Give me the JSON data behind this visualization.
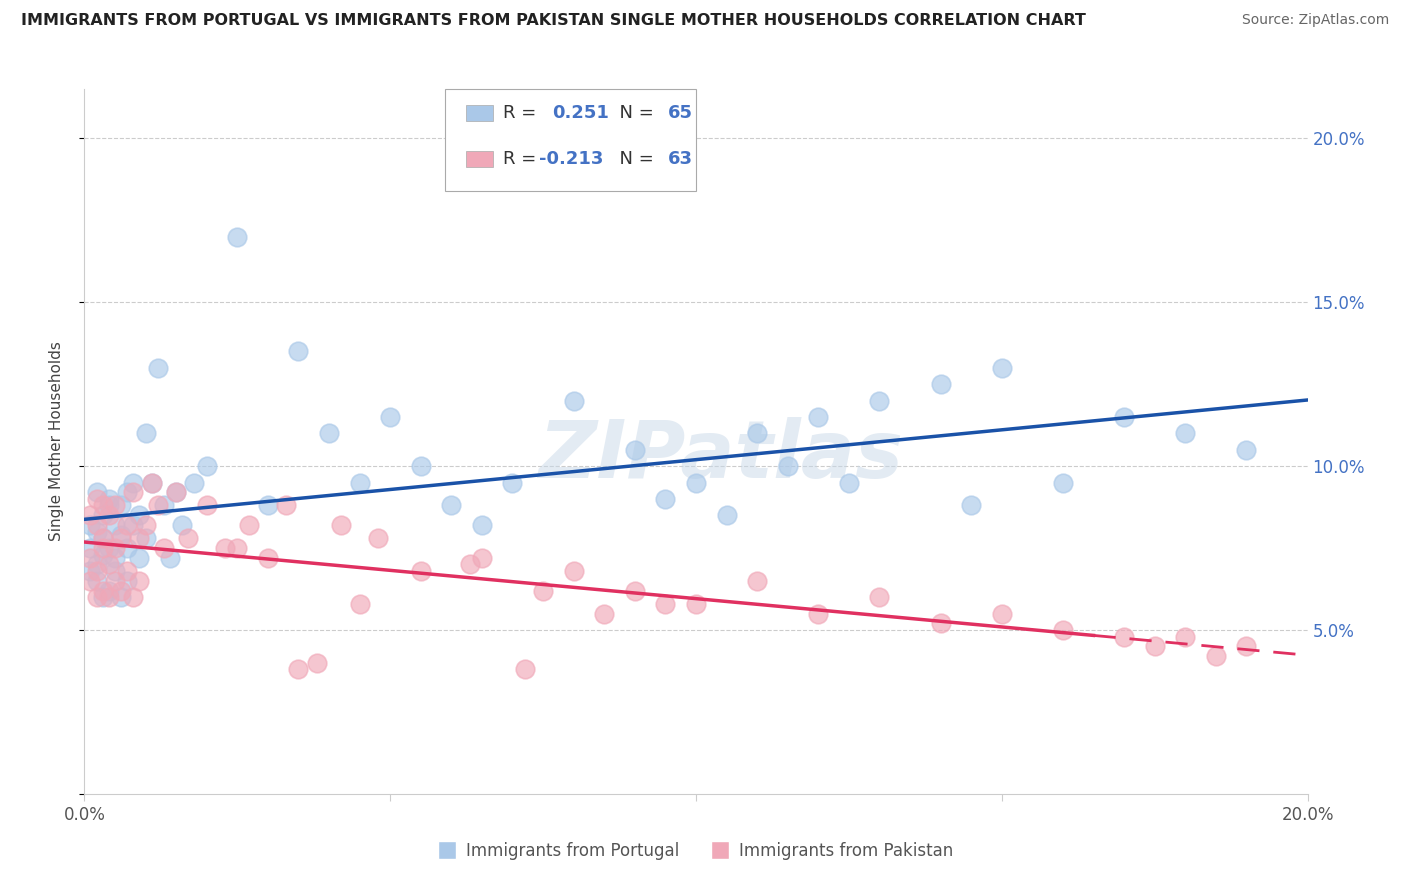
{
  "title": "IMMIGRANTS FROM PORTUGAL VS IMMIGRANTS FROM PAKISTAN SINGLE MOTHER HOUSEHOLDS CORRELATION CHART",
  "source": "Source: ZipAtlas.com",
  "ylabel": "Single Mother Households",
  "color_portugal": "#aac8e8",
  "color_pakistan": "#f0a8b8",
  "color_portugal_line": "#1a52a8",
  "color_pakistan_line": "#e03060",
  "r_portugal": "0.251",
  "n_portugal": "65",
  "r_pakistan": "-0.213",
  "n_pakistan": "63",
  "watermark": "ZIPatlas",
  "xlim": [
    0.0,
    0.2
  ],
  "ylim": [
    0.0,
    0.215
  ],
  "portugal_x": [
    0.001,
    0.001,
    0.001,
    0.002,
    0.002,
    0.002,
    0.002,
    0.003,
    0.003,
    0.003,
    0.003,
    0.004,
    0.004,
    0.004,
    0.004,
    0.005,
    0.005,
    0.005,
    0.006,
    0.006,
    0.006,
    0.007,
    0.007,
    0.007,
    0.008,
    0.008,
    0.009,
    0.009,
    0.01,
    0.01,
    0.011,
    0.012,
    0.013,
    0.014,
    0.015,
    0.016,
    0.018,
    0.02,
    0.025,
    0.03,
    0.035,
    0.04,
    0.045,
    0.05,
    0.055,
    0.06,
    0.065,
    0.07,
    0.08,
    0.09,
    0.1,
    0.11,
    0.12,
    0.13,
    0.14,
    0.15,
    0.16,
    0.17,
    0.18,
    0.19,
    0.095,
    0.105,
    0.115,
    0.125,
    0.145
  ],
  "portugal_y": [
    0.075,
    0.082,
    0.068,
    0.08,
    0.092,
    0.07,
    0.065,
    0.085,
    0.073,
    0.06,
    0.078,
    0.088,
    0.075,
    0.062,
    0.09,
    0.082,
    0.068,
    0.072,
    0.079,
    0.06,
    0.088,
    0.075,
    0.092,
    0.065,
    0.082,
    0.095,
    0.072,
    0.085,
    0.078,
    0.11,
    0.095,
    0.13,
    0.088,
    0.072,
    0.092,
    0.082,
    0.095,
    0.1,
    0.17,
    0.088,
    0.135,
    0.11,
    0.095,
    0.115,
    0.1,
    0.088,
    0.082,
    0.095,
    0.12,
    0.105,
    0.095,
    0.11,
    0.115,
    0.12,
    0.125,
    0.13,
    0.095,
    0.115,
    0.11,
    0.105,
    0.09,
    0.085,
    0.1,
    0.095,
    0.088
  ],
  "pakistan_x": [
    0.001,
    0.001,
    0.001,
    0.002,
    0.002,
    0.002,
    0.002,
    0.003,
    0.003,
    0.003,
    0.003,
    0.004,
    0.004,
    0.004,
    0.005,
    0.005,
    0.005,
    0.006,
    0.006,
    0.007,
    0.007,
    0.008,
    0.008,
    0.009,
    0.009,
    0.01,
    0.011,
    0.012,
    0.013,
    0.015,
    0.017,
    0.02,
    0.023,
    0.027,
    0.03,
    0.033,
    0.038,
    0.042,
    0.048,
    0.055,
    0.063,
    0.072,
    0.08,
    0.09,
    0.1,
    0.11,
    0.12,
    0.13,
    0.14,
    0.15,
    0.16,
    0.17,
    0.175,
    0.18,
    0.185,
    0.19,
    0.025,
    0.035,
    0.045,
    0.065,
    0.075,
    0.085,
    0.095
  ],
  "pakistan_y": [
    0.072,
    0.085,
    0.065,
    0.082,
    0.09,
    0.068,
    0.06,
    0.088,
    0.075,
    0.062,
    0.078,
    0.085,
    0.07,
    0.06,
    0.088,
    0.075,
    0.065,
    0.078,
    0.062,
    0.082,
    0.068,
    0.092,
    0.06,
    0.078,
    0.065,
    0.082,
    0.095,
    0.088,
    0.075,
    0.092,
    0.078,
    0.088,
    0.075,
    0.082,
    0.072,
    0.088,
    0.04,
    0.082,
    0.078,
    0.068,
    0.07,
    0.038,
    0.068,
    0.062,
    0.058,
    0.065,
    0.055,
    0.06,
    0.052,
    0.055,
    0.05,
    0.048,
    0.045,
    0.048,
    0.042,
    0.045,
    0.075,
    0.038,
    0.058,
    0.072,
    0.062,
    0.055,
    0.058
  ]
}
